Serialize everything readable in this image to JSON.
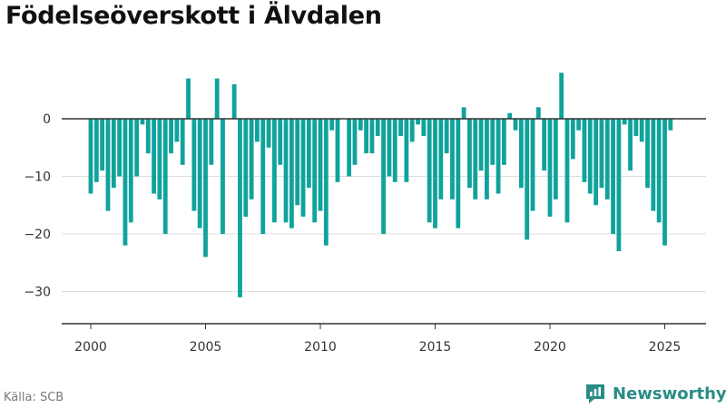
{
  "title": "Födelseöverskott i Älvdalen",
  "source": "Källa: SCB",
  "brand": {
    "name": "Newsworthy"
  },
  "colors": {
    "bar": "#0fa39b",
    "grid": "#dddddd",
    "zero_line": "#333333",
    "axis": "#333333",
    "brand": "#2a8c86"
  },
  "chart_data": {
    "type": "bar",
    "title": "Födelseöverskott i Älvdalen",
    "xlabel": "",
    "ylabel": "",
    "xlim": [
      1999,
      2027
    ],
    "ylim": [
      -35,
      10
    ],
    "y_ticks": [
      0,
      -10,
      -20,
      -30
    ],
    "y_tick_labels": [
      "0",
      "−10",
      "−20",
      "−30"
    ],
    "x_ticks": [
      2000,
      2005,
      2010,
      2015,
      2020,
      2025
    ],
    "x_tick_labels": [
      "2000",
      "2005",
      "2010",
      "2015",
      "2020",
      "2025"
    ],
    "grid": "horizontal",
    "frequency": "quarterly",
    "start": "2000 Q1",
    "values": [
      -13,
      -11,
      -9,
      -16,
      -12,
      -10,
      -22,
      -18,
      -10,
      -1,
      -6,
      -13,
      -14,
      -20,
      -6,
      -4,
      -8,
      7,
      -16,
      -19,
      -24,
      -8,
      7,
      -20,
      0,
      6,
      -31,
      -17,
      -14,
      -4,
      -20,
      -5,
      -18,
      -8,
      -18,
      -19,
      -15,
      -17,
      -12,
      -18,
      -16,
      -22,
      -2,
      -11,
      0,
      -10,
      -8,
      -2,
      -6,
      -6,
      -3,
      -20,
      -10,
      -11,
      -3,
      -11,
      -4,
      -1,
      -3,
      -18,
      -19,
      -14,
      -6,
      -14,
      -19,
      2,
      -12,
      -14,
      -9,
      -14,
      -8,
      -13,
      -8,
      1,
      -2,
      -12,
      -21,
      -16,
      2,
      -9,
      -17,
      -14,
      8,
      -18,
      -7,
      -2,
      -11,
      -13,
      -15,
      -12,
      -14,
      -20,
      -23,
      -1,
      -9,
      -3,
      -4,
      -12,
      -16,
      -18,
      -22,
      -2
    ]
  }
}
